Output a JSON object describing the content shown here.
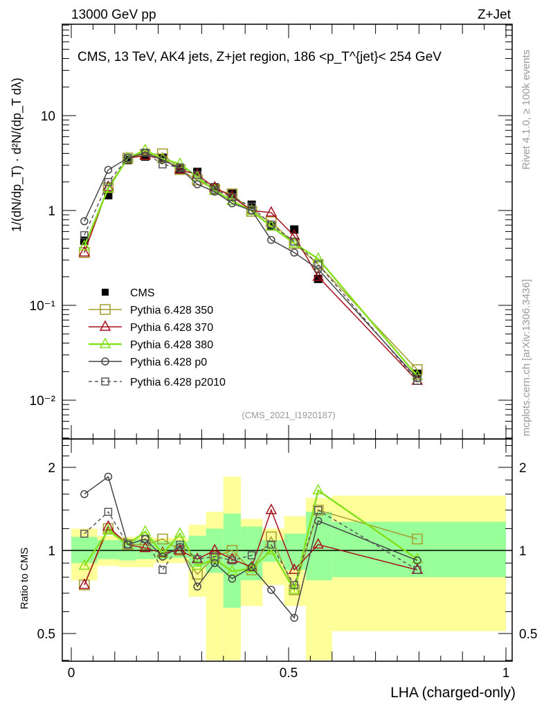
{
  "header": {
    "left": "13000 GeV pp",
    "right": "Z+Jet"
  },
  "side_text": {
    "rivet": "Rivet 4.1.0, ≥ 100k events",
    "mcplots": "mcplots.cern.ch [arXiv:1306.3436]"
  },
  "analysis_id": "(CMS_2021_I1920187)",
  "chart_data": [
    {
      "type": "line",
      "title": "CMS, 13 TeV, AK4 jets, Z+jet region, 186 <p_T^{jet}< 254 GeV",
      "ylabel": "1/(dN/dp_T) · d²N/(dp_T dλ)",
      "xlabel": "LHA (charged-only)",
      "yscale": "log",
      "xlim": [
        -0.02,
        1.015
      ],
      "ylim": [
        0.004,
        90
      ],
      "ytick_labels": [
        "10⁻²",
        "10⁻¹",
        "1",
        "10"
      ],
      "ytick_values": [
        0.01,
        0.1,
        1,
        10
      ],
      "legend_position": "bottom-left",
      "x": [
        0.03,
        0.085,
        0.13,
        0.17,
        0.21,
        0.25,
        0.29,
        0.33,
        0.37,
        0.415,
        0.46,
        0.513,
        0.568,
        0.796
      ],
      "series": [
        {
          "name": "CMS",
          "color": "#000000",
          "marker": "filled-square",
          "values": [
            0.48,
            1.45,
            3.4,
            3.7,
            3.6,
            2.7,
            2.55,
            1.75,
            1.5,
            1.15,
            0.68,
            0.63,
            0.19,
            0.019
          ]
        },
        {
          "name": "Pythia 6.428 350",
          "color": "#a39b2c",
          "marker": "open-square",
          "values": [
            0.36,
            1.74,
            3.57,
            3.89,
            3.96,
            2.7,
            2.09,
            1.66,
            1.5,
            0.98,
            0.76,
            0.45,
            0.27,
            0.021
          ]
        },
        {
          "name": "Pythia 6.428 370",
          "color": "#a50f1b",
          "marker": "open-triangle",
          "values": [
            0.36,
            1.77,
            3.57,
            3.77,
            3.53,
            2.7,
            2.37,
            1.75,
            1.4,
            1.0,
            0.95,
            0.54,
            0.2,
            0.016
          ]
        },
        {
          "name": "Pythia 6.428 380",
          "color": "#84e01c",
          "marker": "open-triangle",
          "values": [
            0.42,
            1.71,
            3.57,
            4.33,
            3.49,
            3.1,
            2.24,
            1.63,
            1.26,
            0.99,
            0.68,
            0.45,
            0.31,
            0.018
          ]
        },
        {
          "name": "Pythia 6.428 p0",
          "color": "#444444",
          "marker": "open-circle",
          "values": [
            0.77,
            2.68,
            3.57,
            4.07,
            3.42,
            2.78,
            1.89,
            1.58,
            1.19,
            1.0,
            0.49,
            0.36,
            0.24,
            0.017
          ]
        },
        {
          "name": "Pythia 6.428 p2010",
          "color": "#555555",
          "marker": "open-square-small",
          "dashed": true,
          "values": [
            0.55,
            2.0,
            3.57,
            4.07,
            3.06,
            2.84,
            2.37,
            1.66,
            1.38,
            1.1,
            0.71,
            0.47,
            0.27,
            0.016
          ]
        }
      ]
    },
    {
      "type": "line",
      "ylabel": "Ratio to CMS",
      "xlabel": "LHA (charged-only)",
      "yscale": "log",
      "ylim": [
        0.4,
        2.5
      ],
      "ytick_labels": [
        "0.5",
        "1",
        "2"
      ],
      "ytick_values": [
        0.5,
        1,
        2
      ],
      "xtick_labels": [
        "0",
        "0.5",
        "1"
      ],
      "xtick_values": [
        0,
        0.5,
        1
      ],
      "bin_edges": [
        0,
        0.06,
        0.11,
        0.15,
        0.19,
        0.23,
        0.27,
        0.31,
        0.35,
        0.39,
        0.44,
        0.49,
        0.54,
        0.6,
        1.0
      ],
      "stat_band": {
        "color": "#99ff99",
        "low": [
          0.9,
          0.93,
          0.92,
          0.93,
          0.93,
          0.94,
          0.87,
          0.83,
          0.62,
          0.78,
          0.91,
          0.85,
          0.78,
          0.8
        ],
        "high": [
          1.12,
          1.09,
          1.09,
          1.1,
          1.08,
          1.08,
          1.13,
          1.2,
          1.36,
          1.22,
          1.09,
          1.15,
          1.38,
          1.27
        ]
      },
      "total_band": {
        "color": "#ffff99",
        "low": [
          0.78,
          0.88,
          0.87,
          0.87,
          0.9,
          0.9,
          0.68,
          0.4,
          0.4,
          0.63,
          0.75,
          0.63,
          0.4,
          0.51
        ],
        "high": [
          1.2,
          1.13,
          1.12,
          1.12,
          1.11,
          1.11,
          1.24,
          1.38,
          1.85,
          1.3,
          1.2,
          1.33,
          1.55,
          1.58
        ]
      },
      "x": [
        0.03,
        0.085,
        0.13,
        0.17,
        0.21,
        0.25,
        0.29,
        0.33,
        0.37,
        0.415,
        0.46,
        0.513,
        0.568,
        0.796
      ],
      "series": [
        {
          "name": "Pythia 6.428 350",
          "values": [
            0.75,
            1.2,
            1.05,
            1.05,
            1.1,
            1.0,
            0.82,
            0.95,
            1.0,
            0.85,
            1.12,
            0.72,
            1.4,
            1.1
          ]
        },
        {
          "name": "Pythia 6.428 370",
          "values": [
            0.75,
            1.22,
            1.05,
            1.02,
            0.98,
            1.0,
            0.93,
            1.0,
            0.93,
            0.87,
            1.4,
            0.85,
            1.05,
            0.85
          ]
        },
        {
          "name": "Pythia 6.428 380",
          "values": [
            0.88,
            1.18,
            1.05,
            1.17,
            0.97,
            1.15,
            0.88,
            0.93,
            0.84,
            0.86,
            1.0,
            0.72,
            1.65,
            0.93
          ]
        },
        {
          "name": "Pythia 6.428 p0",
          "values": [
            1.6,
            1.85,
            1.05,
            1.1,
            0.95,
            1.03,
            0.74,
            0.9,
            0.79,
            0.87,
            0.72,
            0.57,
            1.28,
            0.92
          ]
        },
        {
          "name": "Pythia 6.428 p2010",
          "values": [
            1.15,
            1.38,
            1.05,
            1.1,
            0.85,
            1.05,
            0.93,
            0.95,
            0.92,
            0.96,
            1.05,
            0.75,
            1.4,
            0.85
          ]
        }
      ]
    }
  ]
}
